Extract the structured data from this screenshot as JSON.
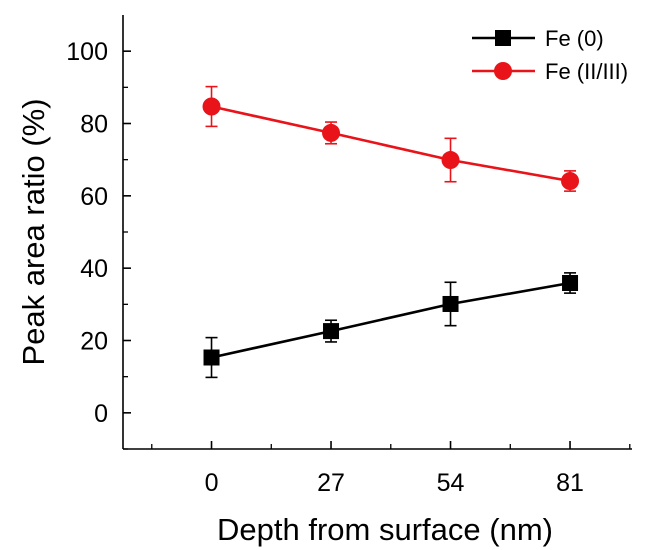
{
  "chart_data": {
    "type": "line",
    "title": "",
    "xlabel": "Depth from surface (nm)",
    "ylabel": "Peak area ratio (%)",
    "x": [
      0,
      27,
      54,
      81
    ],
    "x_tick_labels": [
      "0",
      "27",
      "54",
      "81"
    ],
    "xlim": [
      -20,
      95
    ],
    "ylim": [
      -10,
      110
    ],
    "y_ticks": [
      0,
      20,
      40,
      60,
      80,
      100
    ],
    "y_tick_labels": [
      "0",
      "20",
      "40",
      "60",
      "80",
      "100"
    ],
    "grid": false,
    "legend_position": "top-right",
    "series": [
      {
        "name": "Fe (0)",
        "color": "#000000",
        "marker": "square",
        "values": [
          15.3,
          22.6,
          30.1,
          35.9
        ],
        "error": [
          5.5,
          3.0,
          6.0,
          2.8
        ]
      },
      {
        "name": "Fe (II/III)",
        "color": "#e8141a",
        "marker": "circle",
        "values": [
          84.7,
          77.4,
          69.9,
          64.1
        ],
        "error": [
          5.5,
          3.0,
          6.0,
          2.8
        ]
      }
    ]
  }
}
